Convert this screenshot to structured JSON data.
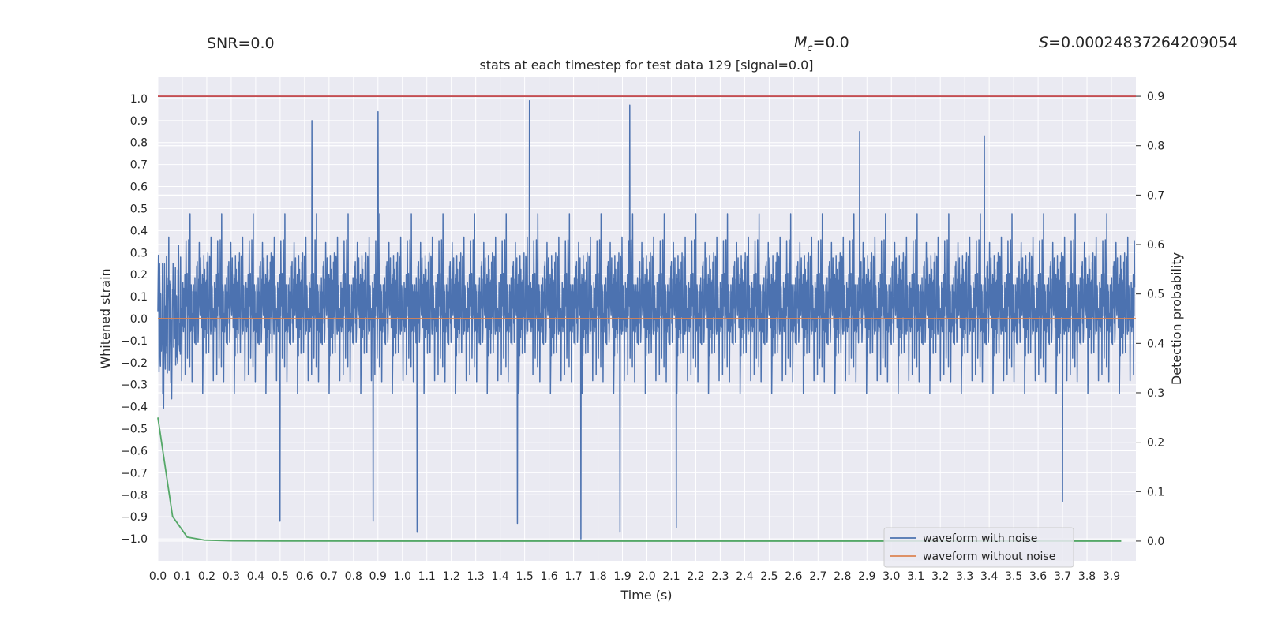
{
  "header": {
    "snr_label": "SNR=0.0",
    "mc_label": "M",
    "mc_sub": "c",
    "mc_value": "=0.0",
    "s_label": "S",
    "s_value": "=0.00024837264209054"
  },
  "chart_data": {
    "type": "line",
    "title": "stats at each timestep for test data 129 [signal=0.0]",
    "xlabel": "Time (s)",
    "ylabel_left": "Whitened strain",
    "ylabel_right": "Detection probability",
    "xlim": [
      0.0,
      4.0
    ],
    "ylim_left": [
      -1.1,
      1.1
    ],
    "ylim_right": [
      -0.04,
      0.94
    ],
    "x_ticks": [
      "0.0",
      "0.1",
      "0.2",
      "0.3",
      "0.4",
      "0.5",
      "0.6",
      "0.7",
      "0.8",
      "0.9",
      "1.0",
      "1.1",
      "1.2",
      "1.3",
      "1.4",
      "1.5",
      "1.6",
      "1.7",
      "1.8",
      "1.9",
      "2.0",
      "2.1",
      "2.2",
      "2.3",
      "2.4",
      "2.5",
      "2.6",
      "2.7",
      "2.8",
      "2.9",
      "3.0",
      "3.1",
      "3.2",
      "3.3",
      "3.4",
      "3.5",
      "3.6",
      "3.7",
      "3.8",
      "3.9"
    ],
    "y_ticks_left": [
      "1.0",
      "0.9",
      "0.8",
      "0.7",
      "0.6",
      "0.5",
      "0.4",
      "0.3",
      "0.2",
      "0.1",
      "0.0",
      "−0.1",
      "−0.2",
      "−0.3",
      "−0.4",
      "−0.5",
      "−0.6",
      "−0.7",
      "−0.8",
      "−0.9",
      "−1.0"
    ],
    "y_ticks_right": [
      "0.9",
      "0.8",
      "0.7",
      "0.6",
      "0.5",
      "0.4",
      "0.3",
      "0.2",
      "0.1",
      "0.0"
    ],
    "grid": true,
    "legend_position": "bottom-right",
    "series": [
      {
        "name": "waveform with noise",
        "axis": "left",
        "color": "#4c72b0",
        "style": "noise",
        "peaks": [
          {
            "x": 1.52,
            "y": 0.99
          },
          {
            "x": 1.73,
            "y": -1.0
          },
          {
            "x": 1.93,
            "y": 0.97
          },
          {
            "x": 0.9,
            "y": 0.94
          },
          {
            "x": 0.63,
            "y": 0.9
          },
          {
            "x": 2.87,
            "y": 0.85
          },
          {
            "x": 1.06,
            "y": -0.97
          },
          {
            "x": 1.89,
            "y": -0.97
          },
          {
            "x": 2.12,
            "y": -0.95
          },
          {
            "x": 0.88,
            "y": -0.92
          },
          {
            "x": 0.5,
            "y": -0.92
          },
          {
            "x": 1.47,
            "y": -0.93
          },
          {
            "x": 3.38,
            "y": 0.83
          },
          {
            "x": 3.7,
            "y": -0.83
          }
        ]
      },
      {
        "name": "waveform without noise",
        "axis": "left",
        "color": "#dd8452",
        "x": [
          0.0,
          4.0
        ],
        "y": [
          0.0,
          0.0
        ]
      },
      {
        "name": "",
        "axis": "right",
        "color": "#55a868",
        "x": [
          0.0,
          0.06,
          0.12,
          0.19,
          0.3,
          0.5,
          1.0,
          2.0,
          3.0,
          3.94
        ],
        "y": [
          0.25,
          0.05,
          0.008,
          0.002,
          0.0005,
          0.0002,
          0.0,
          0.0,
          0.0,
          0.0
        ]
      },
      {
        "name": "",
        "axis": "right",
        "color": "#c44e52",
        "x": [
          0.0,
          4.0
        ],
        "y": [
          0.9,
          0.9
        ]
      }
    ]
  }
}
